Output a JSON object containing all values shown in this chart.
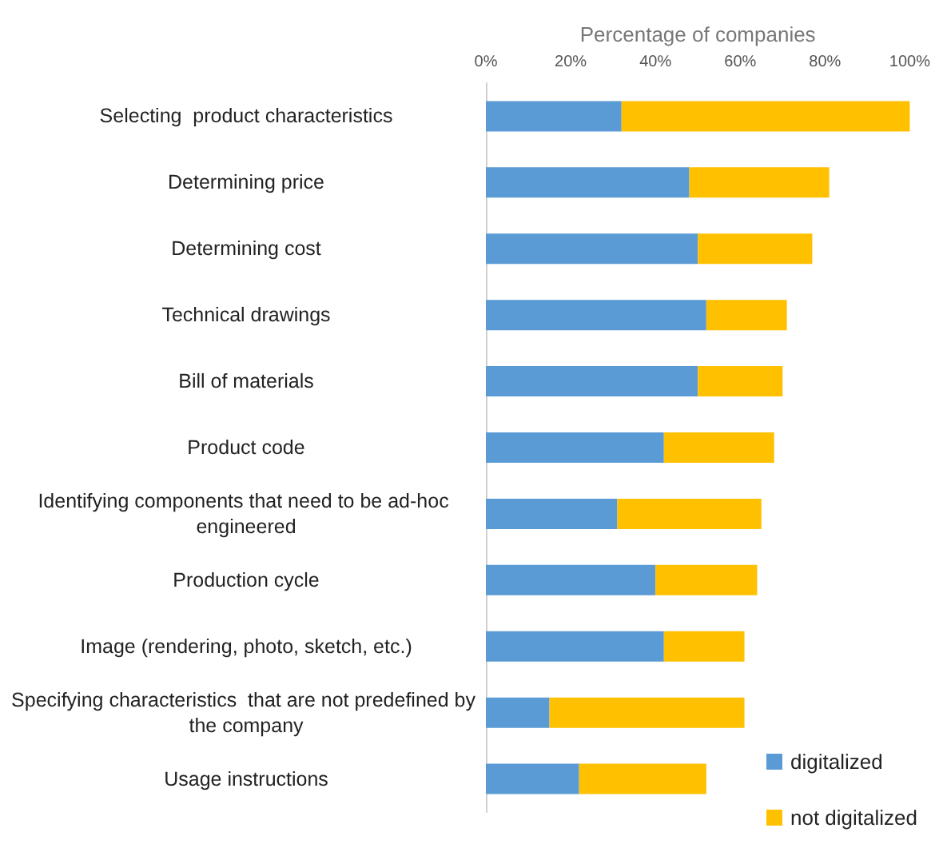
{
  "chart_data": {
    "type": "bar",
    "orientation": "horizontal",
    "stacked": true,
    "xlabel": "Percentage of companies",
    "categories": [
      "Selecting  product characteristics",
      "Determining price",
      "Determining cost",
      "Technical drawings",
      "Bill of materials",
      "Product code",
      "Identifying components that need to be ad-hoc engineered",
      "Production cycle",
      "Image (rendering, photo, sketch, etc.)",
      "Specifying characteristics  that are not predefined by the company",
      "Usage instructions"
    ],
    "series": [
      {
        "name": "digitalized",
        "color": "#5b9bd5",
        "values": [
          32,
          48,
          50,
          52,
          50,
          42,
          31,
          40,
          42,
          15,
          22
        ]
      },
      {
        "name": "not digitalized",
        "color": "#ffc000",
        "values": [
          68,
          33,
          27,
          19,
          20,
          26,
          34,
          24,
          19,
          46,
          30
        ]
      }
    ],
    "xlim": [
      0,
      100
    ],
    "xticks": [
      {
        "value": 0,
        "label": "0%"
      },
      {
        "value": 20,
        "label": "20%"
      },
      {
        "value": 40,
        "label": "40%"
      },
      {
        "value": 60,
        "label": "60%"
      },
      {
        "value": 80,
        "label": "80%"
      },
      {
        "value": 100,
        "label": "100%"
      }
    ],
    "grid": false,
    "legend": "bottom right"
  }
}
